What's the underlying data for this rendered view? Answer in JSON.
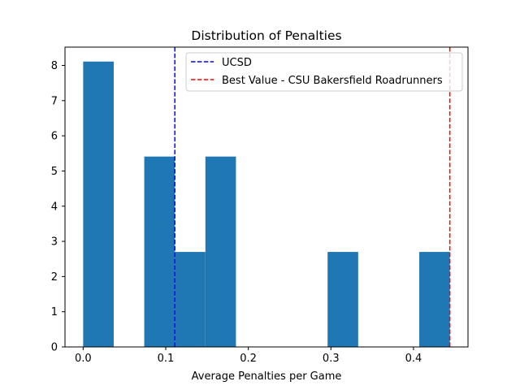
{
  "chart_data": {
    "type": "histogram",
    "title": "Distribution of Penalties",
    "xlabel": "Average Penalties per Game",
    "ylabel": "",
    "xlim": [
      -0.022,
      0.466
    ],
    "ylim": [
      0,
      8.52
    ],
    "xticks": [
      {
        "value": 0.0,
        "label": "0.0"
      },
      {
        "value": 0.1,
        "label": "0.1"
      },
      {
        "value": 0.2,
        "label": "0.2"
      },
      {
        "value": 0.3,
        "label": "0.3"
      },
      {
        "value": 0.4,
        "label": "0.4"
      }
    ],
    "yticks": [
      {
        "value": 0,
        "label": "0"
      },
      {
        "value": 1,
        "label": "1"
      },
      {
        "value": 2,
        "label": "2"
      },
      {
        "value": 3,
        "label": "3"
      },
      {
        "value": 4,
        "label": "4"
      },
      {
        "value": 5,
        "label": "5"
      },
      {
        "value": 6,
        "label": "6"
      },
      {
        "value": 7,
        "label": "7"
      },
      {
        "value": 8,
        "label": "8"
      }
    ],
    "bins": [
      {
        "x0": 0.0,
        "x1": 0.037,
        "value": 8.11
      },
      {
        "x0": 0.037,
        "x1": 0.074,
        "value": 0
      },
      {
        "x0": 0.074,
        "x1": 0.111,
        "value": 5.41
      },
      {
        "x0": 0.111,
        "x1": 0.148,
        "value": 2.7
      },
      {
        "x0": 0.148,
        "x1": 0.185,
        "value": 5.41
      },
      {
        "x0": 0.185,
        "x1": 0.222,
        "value": 0
      },
      {
        "x0": 0.222,
        "x1": 0.259,
        "value": 0
      },
      {
        "x0": 0.259,
        "x1": 0.296,
        "value": 0
      },
      {
        "x0": 0.296,
        "x1": 0.333,
        "value": 2.7
      },
      {
        "x0": 0.333,
        "x1": 0.37,
        "value": 0
      },
      {
        "x0": 0.37,
        "x1": 0.407,
        "value": 0
      },
      {
        "x0": 0.407,
        "x1": 0.444,
        "value": 2.7
      }
    ],
    "bar_color": "#1f77b4",
    "reference_lines": [
      {
        "name": "UCSD",
        "x": 0.111,
        "color": "#0000ff",
        "style": "dashed"
      },
      {
        "name": "Best Value - CSU Bakersfield Roadrunners",
        "x": 0.444,
        "color": "#ff0000",
        "style": "dashed"
      }
    ],
    "legend": {
      "position": "top-right",
      "entries": [
        {
          "label": "UCSD",
          "color": "#0000ff"
        },
        {
          "label": "Best Value - CSU Bakersfield Roadrunners",
          "color": "#ff0000"
        }
      ]
    }
  }
}
